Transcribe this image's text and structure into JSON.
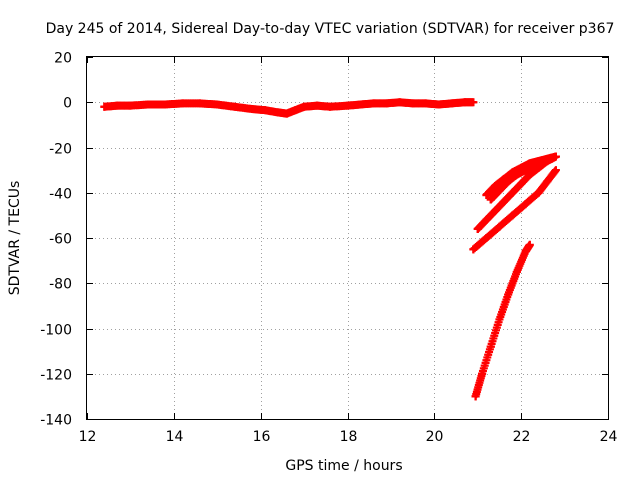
{
  "chart_data": {
    "type": "scatter",
    "title": "Day 245 of 2014, Sidereal Day-to-day VTEC variation (SDTVAR) for receiver p367",
    "xlabel": "GPS time / hours",
    "ylabel": "SDTVAR / TECUs",
    "xlim": [
      12,
      24
    ],
    "ylim": [
      -140,
      20
    ],
    "xticks": [
      12,
      14,
      16,
      18,
      20,
      22,
      24
    ],
    "yticks": [
      -140,
      -120,
      -100,
      -80,
      -60,
      -40,
      -20,
      0,
      20
    ],
    "grid": true,
    "legend": "none",
    "marker": "plus",
    "color": "#ff0000",
    "series": [
      {
        "x": [
          12.4,
          12.7,
          13.0,
          13.4,
          13.8,
          14.2,
          14.6,
          15.0,
          15.4,
          15.8,
          16.1,
          16.4,
          16.6,
          16.8,
          17.0,
          17.3,
          17.6,
          18.0,
          18.3,
          18.6,
          18.9,
          19.2,
          19.5,
          19.8,
          20.1,
          20.4,
          20.7,
          20.9
        ],
        "y": [
          -2,
          -1.5,
          -1.5,
          -1,
          -1,
          -0.5,
          -0.5,
          -1,
          -2,
          -3,
          -3.5,
          -4.5,
          -5,
          -3.5,
          -2,
          -1.5,
          -2,
          -1.5,
          -1,
          -0.5,
          -0.5,
          0,
          -0.5,
          -0.5,
          -1,
          -0.5,
          0,
          0
        ]
      },
      {
        "x": [
          21.0,
          21.2,
          21.4,
          21.6,
          21.8,
          22.0,
          22.2,
          22.4,
          22.6,
          22.8
        ],
        "y": [
          -56,
          -52,
          -48,
          -44,
          -40,
          -36,
          -32,
          -29,
          -26,
          -24
        ]
      },
      {
        "x": [
          21.2,
          21.4,
          21.6,
          21.8,
          22.0,
          22.2,
          22.4,
          22.6,
          22.8
        ],
        "y": [
          -41,
          -37,
          -34,
          -31,
          -29,
          -27,
          -26,
          -25,
          -24
        ]
      },
      {
        "x": [
          21.3,
          21.5,
          21.7,
          21.9,
          22.1,
          22.3,
          22.5,
          22.7
        ],
        "y": [
          -43,
          -39,
          -35,
          -32,
          -30,
          -28,
          -26,
          -25
        ]
      },
      {
        "x": [
          20.9,
          21.2,
          21.5,
          21.8,
          22.1,
          22.4,
          22.6,
          22.8
        ],
        "y": [
          -65,
          -60,
          -55,
          -50,
          -45,
          -40,
          -35,
          -30
        ]
      },
      {
        "x": [
          20.95,
          21.1,
          21.3,
          21.5,
          21.7,
          21.9,
          22.1,
          22.2
        ],
        "y": [
          -130,
          -120,
          -108,
          -96,
          -85,
          -75,
          -66,
          -63
        ]
      }
    ]
  }
}
